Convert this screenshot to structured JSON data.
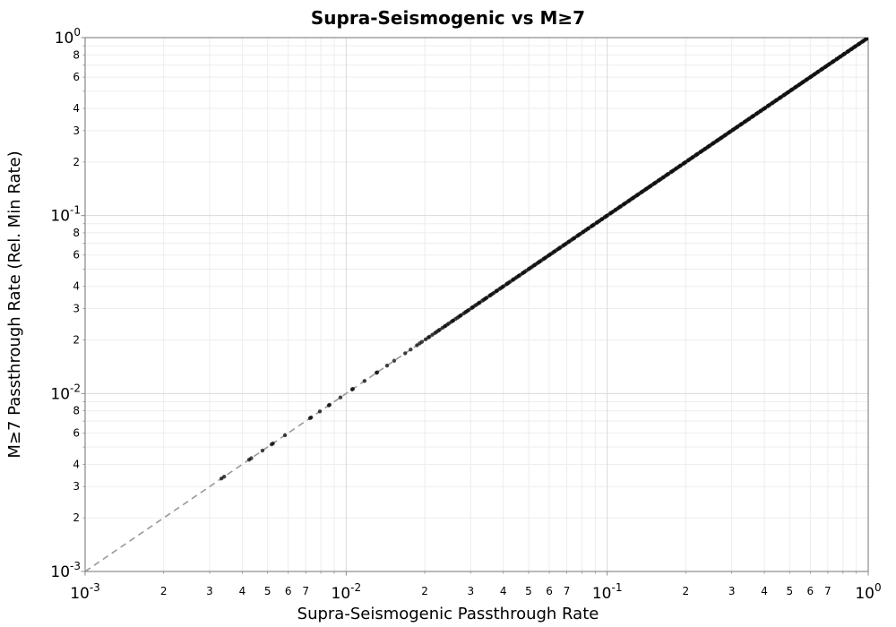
{
  "chart_data": {
    "type": "scatter",
    "title": "Supra-Seismogenic vs M≥7",
    "xlabel": "Supra-Seismogenic Passthrough Rate",
    "ylabel": "M≥7 Passthrough Rate (Rel. Min Rate)",
    "xscale": "log",
    "yscale": "log",
    "xlim": [
      0.001,
      1.0
    ],
    "ylim": [
      0.001,
      1.0
    ],
    "grid": {
      "major": true,
      "minor": true
    },
    "legend": "none",
    "relation": "every data point satisfies y = x (points trace the identity line)",
    "reference_line": {
      "type": "identity",
      "from": [
        0.001,
        0.001
      ],
      "to": [
        1.0,
        1.0
      ],
      "style": "dashed",
      "color": "#999999"
    },
    "axes": {
      "x_major_exponents": [
        -3,
        -2,
        -1,
        0
      ],
      "y_major_exponents": [
        0,
        -1,
        -2,
        -3
      ],
      "x_minor_labels": [
        2,
        3,
        4,
        5,
        6,
        7
      ],
      "y_minor_labels": [
        2,
        3,
        4,
        6,
        8
      ]
    },
    "points": {
      "on_identity_line": true,
      "x_sparse": [
        0.00333,
        0.00341,
        0.00425,
        0.00433,
        0.00478,
        0.00518,
        0.00524,
        0.00583,
        0.00727,
        0.00734,
        0.00793,
        0.00858,
        0.00864,
        0.00951,
        0.01054,
        0.01061,
        0.01176,
        0.01307,
        0.01315,
        0.01434,
        0.01528,
        0.01683,
        0.01767,
        0.01868,
        0.01913
      ],
      "dense_band": {
        "log10_min": -1.71,
        "log10_max": 0.0,
        "approx_count": 430,
        "spread_power": 0.8,
        "jitter_log10": 0.0035
      },
      "note": "points become quasi-continuous above x≈0.02, forming a solid black line up to (1,1); no points below x≈0.0033 where only the dashed line is visible"
    },
    "colors": {
      "marker": "#111111",
      "grid_major": "#d9d9d9",
      "grid_minor": "#ededed",
      "spine": "#8a8a8a",
      "dashed": "#999999",
      "text": "#000000",
      "background": "#ffffff"
    }
  }
}
